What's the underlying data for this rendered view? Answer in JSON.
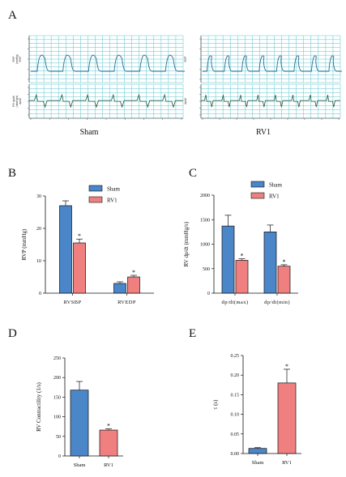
{
  "panel_labels": {
    "a": "A",
    "b": "B",
    "c": "C",
    "d": "D",
    "e": "E"
  },
  "traces": {
    "sham": {
      "caption": "Sham",
      "top_ylabel": "RVP\n(mmHg)\nRVP",
      "bottom_ylabel": "RV dp/dt\n(mmHg/s)\ndp/dt",
      "top_beats": 6,
      "bottom_beats": 6,
      "top_waveform": "rounded"
    },
    "rv1": {
      "caption": "RV1",
      "top_ylabel": "RVP",
      "bottom_ylabel": "dp/dt",
      "top_beats": 8,
      "bottom_beats": 8,
      "top_waveform": "peaked"
    },
    "grid_color": "#5bc3cf",
    "trace_color": "#2b7090",
    "dpdt_color": "#1f5a3a"
  },
  "colors": {
    "sham": "#4a86c8",
    "rv1": "#f08080",
    "axis": "#111111"
  },
  "chart_data": [
    {
      "id": "B",
      "type": "bar",
      "ylabel": "RVP (mmHg)",
      "ylim": [
        0,
        30
      ],
      "yticks": [
        0,
        10,
        20,
        30
      ],
      "categories": [
        "RVSBP",
        "RVEDP"
      ],
      "legend": {
        "position": "top-right",
        "entries": [
          "Sham",
          "RV1"
        ]
      },
      "series": [
        {
          "name": "Sham",
          "values": [
            27,
            3
          ],
          "errors": [
            1.5,
            0.5
          ]
        },
        {
          "name": "RV1",
          "values": [
            15.5,
            5
          ],
          "errors": [
            1.2,
            0.5
          ],
          "significance": [
            "*",
            "*"
          ]
        }
      ]
    },
    {
      "id": "C",
      "type": "bar",
      "ylabel": "RV dp/dt (mmHg/s)",
      "ylim": [
        0,
        2000
      ],
      "yticks": [
        0,
        500,
        1000,
        1500,
        2000
      ],
      "categories": [
        "dp/dt(max)",
        "dp/dt(min)"
      ],
      "legend": {
        "position": "top-left",
        "entries": [
          "Sham",
          "RV1"
        ]
      },
      "series": [
        {
          "name": "Sham",
          "values": [
            1370,
            1250
          ],
          "errors": [
            220,
            140
          ]
        },
        {
          "name": "RV1",
          "values": [
            670,
            550
          ],
          "errors": [
            30,
            30
          ],
          "significance": [
            "*",
            "*"
          ]
        }
      ]
    },
    {
      "id": "D",
      "type": "bar",
      "ylabel": "RV Contractility (1/s)",
      "ylim": [
        0,
        250
      ],
      "yticks": [
        0,
        50,
        100,
        150,
        200,
        250
      ],
      "categories": [
        "Sham",
        "RV1"
      ],
      "values": [
        168,
        66
      ],
      "errors": [
        22,
        3
      ],
      "significance": [
        "",
        "*"
      ]
    },
    {
      "id": "E",
      "type": "bar",
      "ylabel": "τ (s)",
      "ylim": [
        0,
        0.25
      ],
      "yticks": [
        "0.00",
        "0.05",
        "0.10",
        "0.15",
        "0.20",
        "0.25"
      ],
      "categories": [
        "Sham",
        "RV1"
      ],
      "values": [
        0.013,
        0.18
      ],
      "errors": [
        0.002,
        0.035
      ],
      "significance": [
        "",
        "*"
      ]
    }
  ]
}
